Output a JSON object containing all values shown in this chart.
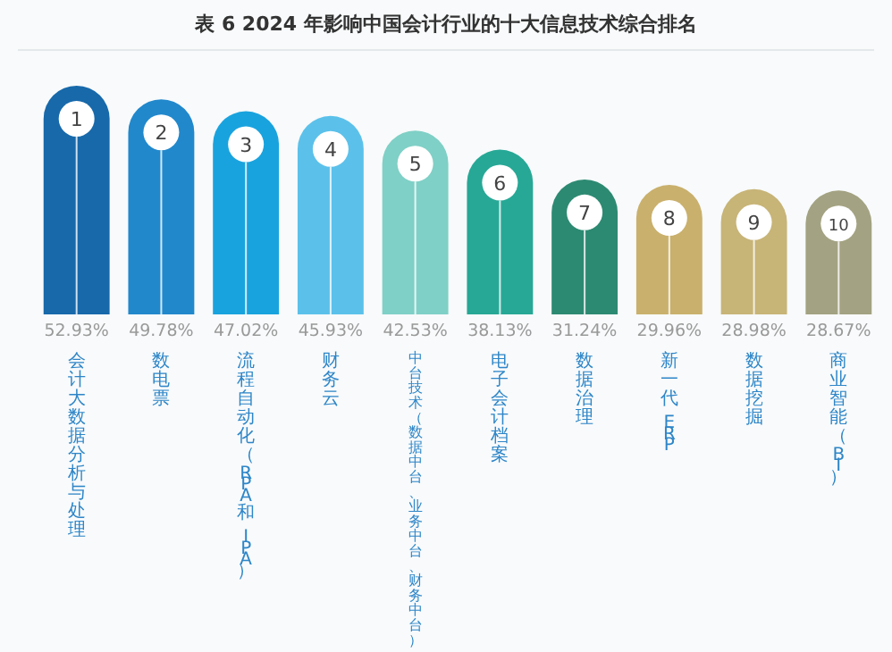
{
  "chart_data": {
    "type": "bar",
    "title": "表 6  2024 年影响中国会计行业的十大信息技术综合排名",
    "categories": [
      "会计大数据分析与处理",
      "数电票",
      "流程自动化（RPA 和 IPA）",
      "财务云",
      "中台技术（数据中台、业务中台、财务中台）",
      "电子会计档案",
      "数据治理",
      "新一代 ERP",
      "数据挖掘",
      "商业智能（BI）"
    ],
    "values": [
      52.93,
      49.78,
      47.02,
      45.93,
      42.53,
      38.13,
      31.24,
      29.96,
      28.98,
      28.67
    ],
    "value_labels": [
      "52.93%",
      "49.78%",
      "47.02%",
      "45.93%",
      "42.53%",
      "38.13%",
      "31.24%",
      "29.96%",
      "28.98%",
      "28.67%"
    ],
    "colors": [
      "#1769aa",
      "#2188cc",
      "#19a3de",
      "#5bc1ea",
      "#7fd0c6",
      "#27a896",
      "#2d8a72",
      "#c9b06c",
      "#c7b477",
      "#a3a282"
    ],
    "annotations": [
      {
        "text": "1",
        "x": "会计大数据分析与处理",
        "y": 52.93
      },
      {
        "text": "2",
        "x": "数电票",
        "y": 49.78
      },
      {
        "text": "3",
        "x": "流程自动化（RPA 和 IPA）",
        "y": 47.02
      },
      {
        "text": "4",
        "x": "财务云",
        "y": 45.93
      },
      {
        "text": "5",
        "x": "中台技术（数据中台、业务中台、财务中台）",
        "y": 42.53
      },
      {
        "text": "6",
        "x": "电子会计档案",
        "y": 38.13
      },
      {
        "text": "7",
        "x": "数据治理",
        "y": 31.24
      },
      {
        "text": "8",
        "x": "新一代 ERP",
        "y": 29.96
      },
      {
        "text": "9",
        "x": "数据挖掘",
        "y": 28.98
      },
      {
        "text": "10",
        "x": "商业智能（BI）",
        "y": 28.67
      }
    ]
  }
}
